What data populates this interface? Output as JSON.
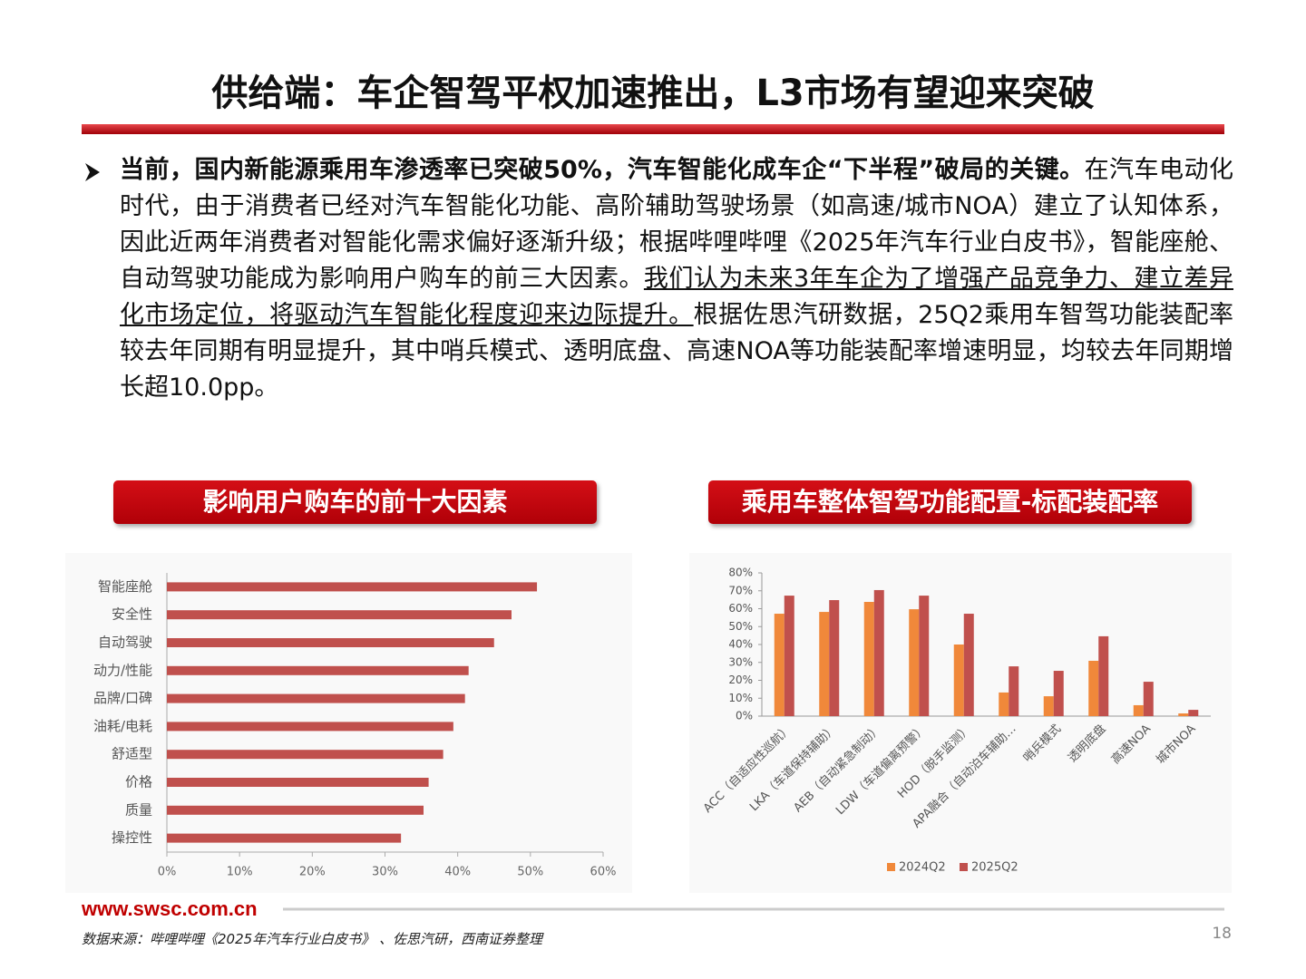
{
  "header": {
    "title": "供给端：车企智驾平权加速推出，L3市场有望迎来突破"
  },
  "paragraph": [
    {
      "style": "bold",
      "text": "当前，国内新能源乘用车渗透率已突破50%，汽车智能化成车企“下半程”破局的关键。"
    },
    {
      "style": "normal",
      "text": "在汽车电动化时代，由于消费者已经对汽车智能化功能、高阶辅助驾驶场景（如高速/城市NOA）建立了认知体系，因此近两年消费者对智能化需求偏好逐渐升级；根据哔哩哔哩《2025年汽车行业白皮书》，智能座舱、自动驾驶功能成为影响用户购车的前三大因素。"
    },
    {
      "style": "underline",
      "text": "我们认为未来3年车企为了增强产品竞争力、建立差异化市场定位，将驱动汽车智能化程度迎来边际提升。"
    },
    {
      "style": "normal",
      "text": "根据佐思汽研数据，25Q2乘用车智驾功能装配率较去年同期有明显提升，其中哨兵模式、透明底盘、高速NOA等功能装配率增速明显，均较去年同期增长超10.0pp。"
    }
  ],
  "chart_data": [
    {
      "type": "bar",
      "orientation": "horizontal",
      "title": "影响用户购车的前十大因素",
      "categories": [
        "智能座舱",
        "安全性",
        "自动驾驶",
        "动力/性能",
        "品牌/口碑",
        "油耗/电耗",
        "舒适型",
        "价格",
        "质量",
        "操控性"
      ],
      "values": [
        50.9,
        47.4,
        45.0,
        41.5,
        41.0,
        39.4,
        38.0,
        36.0,
        35.3,
        32.2
      ],
      "color": "#c0504d",
      "xlim": [
        0,
        60
      ],
      "xticks": [
        {
          "value": 0,
          "label": "0%"
        },
        {
          "value": 10,
          "label": "10%"
        },
        {
          "value": 20,
          "label": "20%"
        },
        {
          "value": 30,
          "label": "30%"
        },
        {
          "value": 40,
          "label": "40%"
        },
        {
          "value": 50,
          "label": "50%"
        },
        {
          "value": 60,
          "label": "60%"
        }
      ]
    },
    {
      "type": "bar",
      "orientation": "vertical",
      "title": "乘用车整体智驾功能配置-标配装配率",
      "categories": [
        "ACC（自适应性巡航）",
        "LKA（车道保持辅助）",
        "AEB（自动紧急制动）",
        "LDW（车道偏离预警）",
        "HOD（脱手监测）",
        "APA融合（自动泊车辅助…",
        "哨兵模式",
        "透明底盘",
        "高速NOA",
        "城市NOA"
      ],
      "series": [
        {
          "name": "2024Q2",
          "color": "#f0883a",
          "values": [
            57.2,
            58.2,
            63.8,
            59.7,
            40.0,
            13.2,
            11.1,
            30.9,
            6.1,
            1.5
          ]
        },
        {
          "name": "2025Q2",
          "color": "#c0504d",
          "values": [
            67.3,
            64.8,
            70.4,
            67.3,
            57.2,
            27.8,
            25.3,
            44.6,
            19.2,
            3.5
          ]
        }
      ],
      "ylim": [
        0,
        80
      ],
      "yticks": [
        {
          "value": 0,
          "label": "0%"
        },
        {
          "value": 10,
          "label": "10%"
        },
        {
          "value": 20,
          "label": "20%"
        },
        {
          "value": 30,
          "label": "30%"
        },
        {
          "value": 40,
          "label": "40%"
        },
        {
          "value": 50,
          "label": "50%"
        },
        {
          "value": 60,
          "label": "60%"
        },
        {
          "value": 70,
          "label": "70%"
        },
        {
          "value": 80,
          "label": "80%"
        }
      ],
      "legend": "bottom"
    }
  ],
  "footer": {
    "url": "www.swsc.com.cn",
    "source": "数据来源：哔哩哔哩《2025年汽车行业白皮书》 、佐思汽研，西南证券整理",
    "page": "18"
  }
}
